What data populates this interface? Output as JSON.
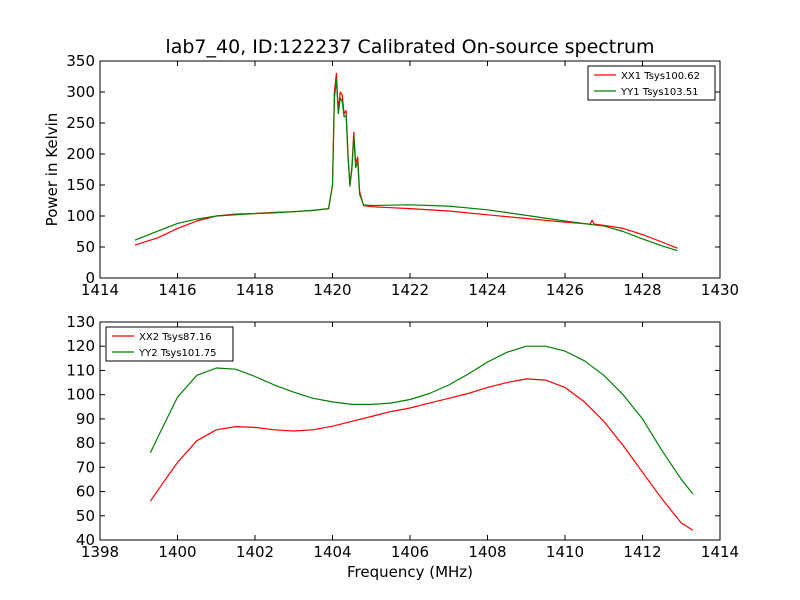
{
  "chart_data": [
    {
      "type": "line",
      "title": "lab7_40, ID:122237 Calibrated On-source spectrum",
      "xlabel": "",
      "ylabel": "Power in Kelvin",
      "xlim": [
        1414,
        1430
      ],
      "ylim": [
        0,
        350
      ],
      "xticks": [
        "1414",
        "1416",
        "1418",
        "1420",
        "1422",
        "1424",
        "1426",
        "1428",
        "1430"
      ],
      "yticks": [
        "0",
        "50",
        "100",
        "150",
        "200",
        "250",
        "300",
        "350"
      ],
      "grid": false,
      "legend_position": "top-right",
      "series": [
        {
          "name": "XX1 Tsys100.62",
          "color": "#ff0000",
          "points": [
            [
              1414.9,
              53
            ],
            [
              1415.5,
              65
            ],
            [
              1416,
              80
            ],
            [
              1416.5,
              92
            ],
            [
              1417,
              100
            ],
            [
              1417.5,
              103
            ],
            [
              1418,
              104
            ],
            [
              1418.5,
              106
            ],
            [
              1419,
              107
            ],
            [
              1419.5,
              109
            ],
            [
              1419.9,
              112
            ],
            [
              1420.0,
              150
            ],
            [
              1420.05,
              300
            ],
            [
              1420.1,
              330
            ],
            [
              1420.15,
              270
            ],
            [
              1420.2,
              300
            ],
            [
              1420.25,
              295
            ],
            [
              1420.3,
              265
            ],
            [
              1420.35,
              270
            ],
            [
              1420.4,
              200
            ],
            [
              1420.45,
              150
            ],
            [
              1420.5,
              180
            ],
            [
              1420.55,
              235
            ],
            [
              1420.6,
              185
            ],
            [
              1420.65,
              195
            ],
            [
              1420.7,
              140
            ],
            [
              1420.8,
              117
            ],
            [
              1421,
              115
            ],
            [
              1422,
              112
            ],
            [
              1423,
              108
            ],
            [
              1424,
              102
            ],
            [
              1425,
              96
            ],
            [
              1426,
              90
            ],
            [
              1426.65,
              87
            ],
            [
              1426.7,
              93
            ],
            [
              1426.75,
              87
            ],
            [
              1427,
              85
            ],
            [
              1427.5,
              80
            ],
            [
              1428,
              70
            ],
            [
              1428.5,
              58
            ],
            [
              1428.9,
              48
            ]
          ]
        },
        {
          "name": "YY1 Tsys103.51",
          "color": "#008000",
          "points": [
            [
              1414.9,
              61
            ],
            [
              1415.5,
              76
            ],
            [
              1416,
              88
            ],
            [
              1416.5,
              95
            ],
            [
              1417,
              100
            ],
            [
              1417.5,
              102
            ],
            [
              1418,
              104
            ],
            [
              1418.5,
              105
            ],
            [
              1419,
              107
            ],
            [
              1419.5,
              109
            ],
            [
              1419.9,
              112
            ],
            [
              1420.0,
              150
            ],
            [
              1420.05,
              290
            ],
            [
              1420.1,
              320
            ],
            [
              1420.15,
              265
            ],
            [
              1420.2,
              290
            ],
            [
              1420.25,
              285
            ],
            [
              1420.3,
              260
            ],
            [
              1420.35,
              262
            ],
            [
              1420.4,
              195
            ],
            [
              1420.45,
              148
            ],
            [
              1420.5,
              175
            ],
            [
              1420.55,
              228
            ],
            [
              1420.6,
              178
            ],
            [
              1420.65,
              188
            ],
            [
              1420.7,
              135
            ],
            [
              1420.8,
              118
            ],
            [
              1421,
              117
            ],
            [
              1422,
              118
            ],
            [
              1423,
              116
            ],
            [
              1424,
              110
            ],
            [
              1425,
              101
            ],
            [
              1426,
              92
            ],
            [
              1426.7,
              86
            ],
            [
              1427,
              84
            ],
            [
              1427.5,
              75
            ],
            [
              1428,
              63
            ],
            [
              1428.5,
              52
            ],
            [
              1428.9,
              44
            ]
          ]
        }
      ]
    },
    {
      "type": "line",
      "title": "",
      "xlabel": "Frequency (MHz)",
      "ylabel": "",
      "xlim": [
        1398,
        1414
      ],
      "ylim": [
        40,
        130
      ],
      "xticks": [
        "1398",
        "1400",
        "1402",
        "1404",
        "1406",
        "1408",
        "1410",
        "1412",
        "1414"
      ],
      "yticks": [
        "40",
        "50",
        "60",
        "70",
        "80",
        "90",
        "100",
        "110",
        "120",
        "130"
      ],
      "grid": false,
      "legend_position": "top-left",
      "series": [
        {
          "name": "XX2 Tsys87.16",
          "color": "#ff0000",
          "points": [
            [
              1399.3,
              56
            ],
            [
              1399.6,
              63
            ],
            [
              1400,
              72
            ],
            [
              1400.5,
              81
            ],
            [
              1401,
              85.5
            ],
            [
              1401.5,
              86.8
            ],
            [
              1402,
              86.5
            ],
            [
              1402.5,
              85.5
            ],
            [
              1403,
              85
            ],
            [
              1403.5,
              85.5
            ],
            [
              1404,
              87
            ],
            [
              1404.5,
              89
            ],
            [
              1405,
              91
            ],
            [
              1405.5,
              93
            ],
            [
              1406,
              94.5
            ],
            [
              1406.5,
              96.5
            ],
            [
              1407,
              98.5
            ],
            [
              1407.5,
              100.5
            ],
            [
              1408,
              103
            ],
            [
              1408.5,
              105
            ],
            [
              1409,
              106.5
            ],
            [
              1409.5,
              106
            ],
            [
              1410,
              103
            ],
            [
              1410.5,
              97
            ],
            [
              1411,
              89
            ],
            [
              1411.5,
              79
            ],
            [
              1412,
              68
            ],
            [
              1412.5,
              57
            ],
            [
              1413,
              47
            ],
            [
              1413.3,
              44
            ]
          ]
        },
        {
          "name": "YY2 Tsys101.75",
          "color": "#008000",
          "points": [
            [
              1399.3,
              76
            ],
            [
              1399.6,
              86
            ],
            [
              1400,
              99
            ],
            [
              1400.5,
              108
            ],
            [
              1401,
              111
            ],
            [
              1401.5,
              110.5
            ],
            [
              1402,
              107.5
            ],
            [
              1402.5,
              104
            ],
            [
              1403,
              101
            ],
            [
              1403.5,
              98.5
            ],
            [
              1404,
              97
            ],
            [
              1404.5,
              96
            ],
            [
              1405,
              96
            ],
            [
              1405.5,
              96.5
            ],
            [
              1406,
              98
            ],
            [
              1406.5,
              100.5
            ],
            [
              1407,
              104
            ],
            [
              1407.5,
              108.5
            ],
            [
              1408,
              113.5
            ],
            [
              1408.5,
              117.5
            ],
            [
              1409,
              120
            ],
            [
              1409.5,
              120
            ],
            [
              1410,
              118
            ],
            [
              1410.5,
              114
            ],
            [
              1411,
              108
            ],
            [
              1411.5,
              100
            ],
            [
              1412,
              90
            ],
            [
              1412.5,
              77
            ],
            [
              1413,
              65
            ],
            [
              1413.3,
              59
            ]
          ]
        }
      ]
    }
  ]
}
